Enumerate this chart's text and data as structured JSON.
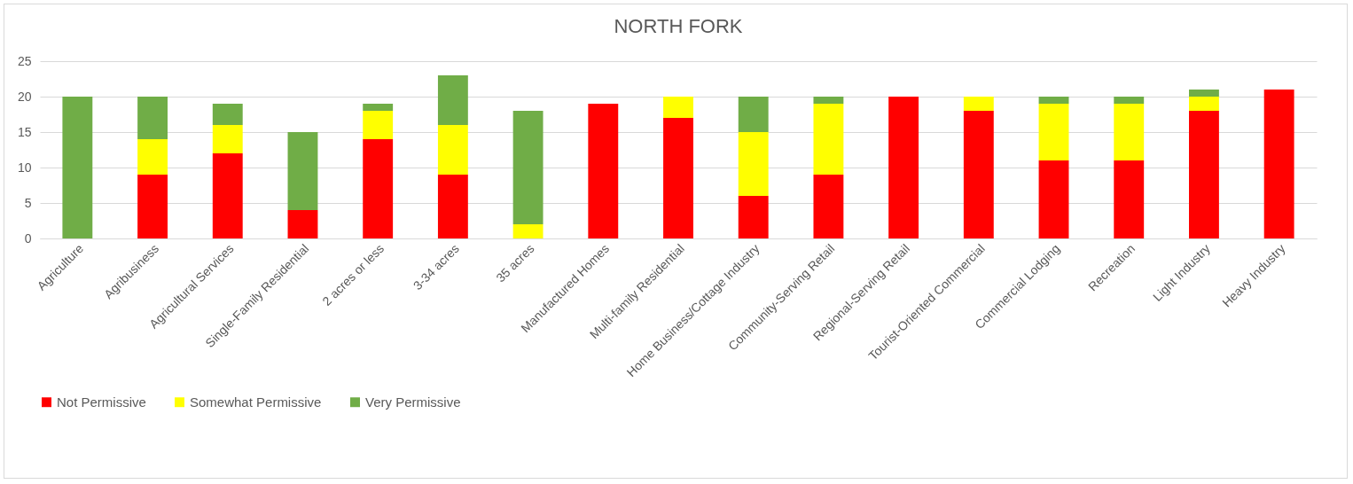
{
  "chart_data": {
    "type": "bar",
    "title": "NORTH FORK",
    "stacked": true,
    "categories": [
      "Agriculture",
      "Agribusiness",
      "Agricultural Services",
      "Single-Family Residential",
      "2 acres or less",
      "3-34 acres",
      "35 acres",
      "Manufactured Homes",
      "Multi-family Residential",
      "Home Business/Cottage Industry",
      "Community-Serving Retail",
      "Regional-Serving Retail",
      "Tourist-Oriented Commercial",
      "Commercial Lodging",
      "Recreation",
      "Light Industry",
      "Heavy Industry"
    ],
    "series": [
      {
        "name": "Not Permissive",
        "color": "#ff0000",
        "values": [
          0,
          9,
          12,
          4,
          14,
          9,
          0,
          19,
          17,
          6,
          9,
          20,
          18,
          11,
          11,
          18,
          21
        ]
      },
      {
        "name": "Somewhat Permissive",
        "color": "#ffff00",
        "values": [
          0,
          5,
          4,
          0,
          4,
          7,
          2,
          0,
          3,
          9,
          10,
          0,
          2,
          8,
          8,
          2,
          0
        ]
      },
      {
        "name": "Very Permissive",
        "color": "#70ad47",
        "values": [
          20,
          6,
          3,
          11,
          1,
          7,
          16,
          0,
          0,
          5,
          1,
          0,
          0,
          1,
          1,
          1,
          0
        ]
      }
    ],
    "ylim": [
      0,
      25
    ],
    "yticks": [
      0,
      5,
      10,
      15,
      20,
      25
    ],
    "grid": "y",
    "legend": "bottom"
  }
}
